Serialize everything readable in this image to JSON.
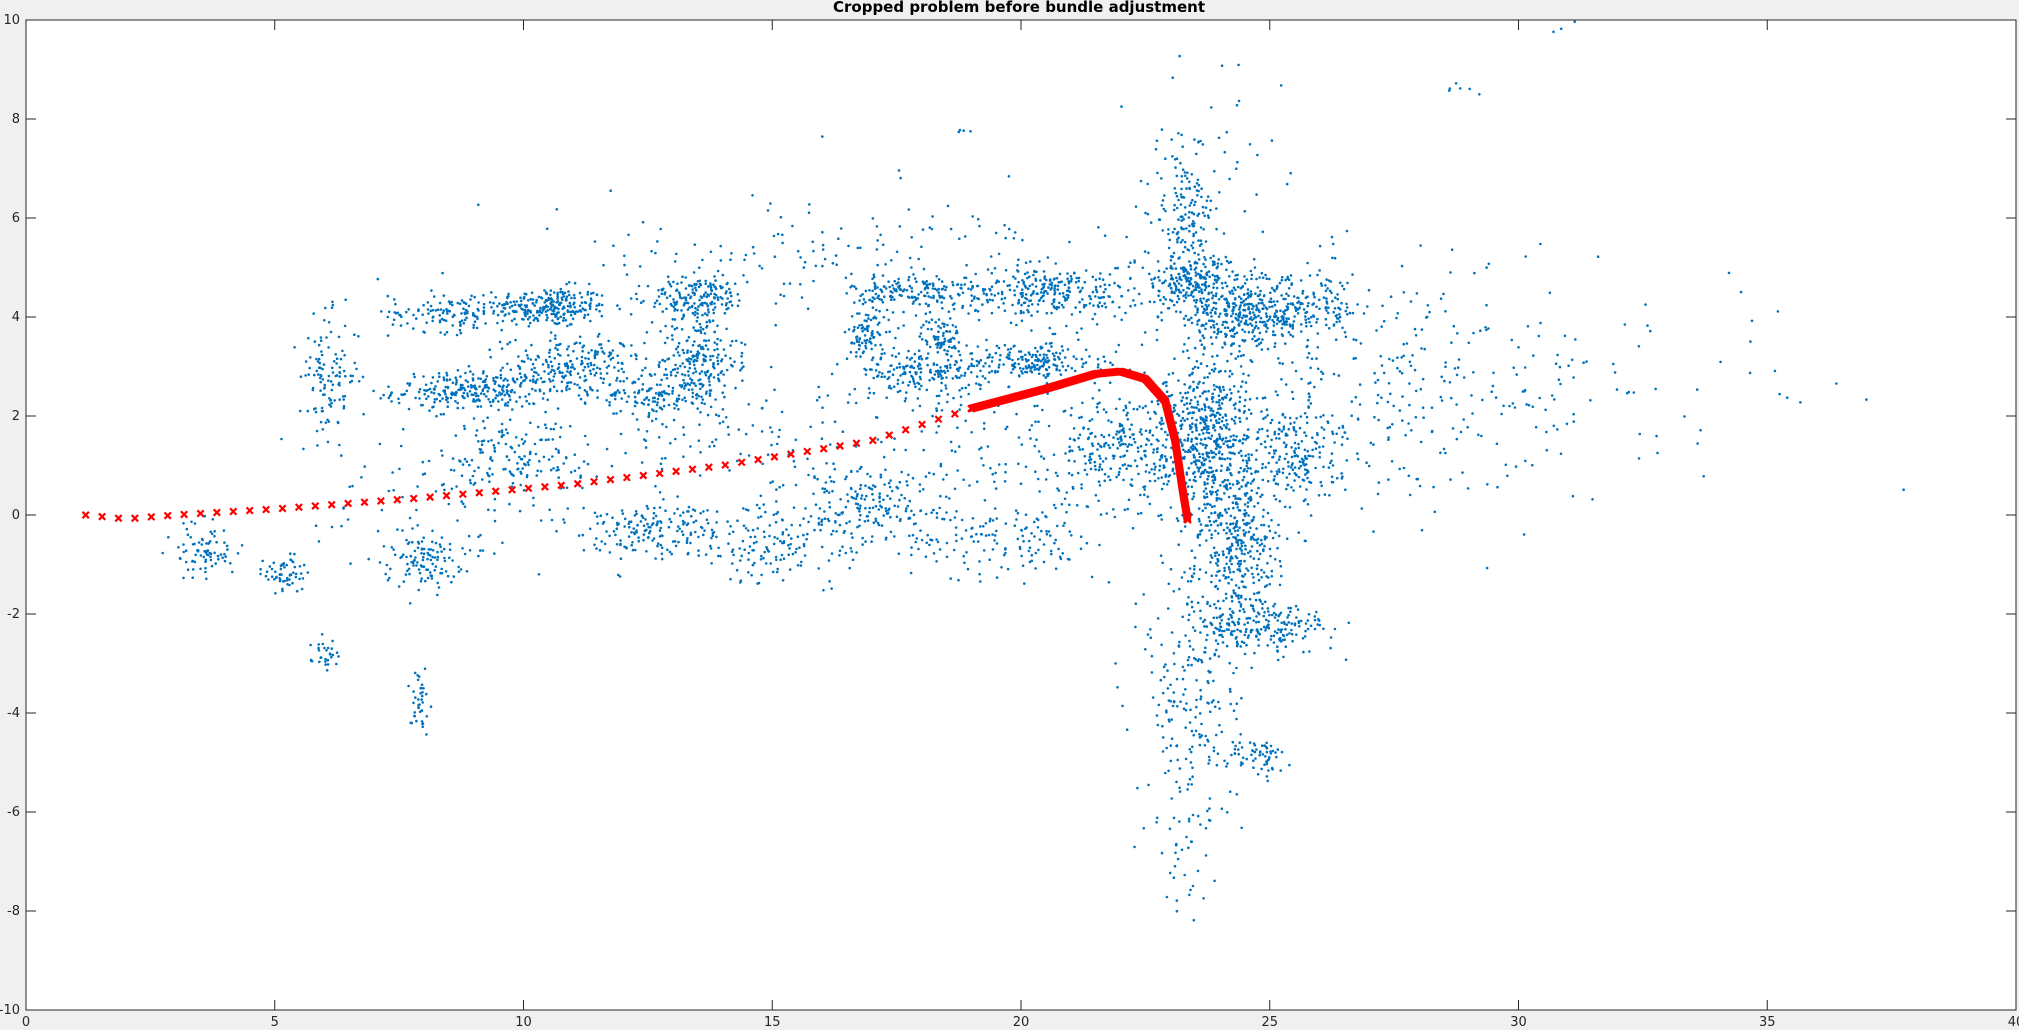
{
  "chart_data": {
    "type": "scatter",
    "title": "Cropped problem before bundle adjustment",
    "xlabel": "",
    "ylabel": "",
    "xlim": [
      0,
      40
    ],
    "ylim": [
      -10,
      10
    ],
    "xticks": [
      0,
      5,
      10,
      15,
      20,
      25,
      30,
      35,
      40
    ],
    "yticks": [
      -10,
      -8,
      -6,
      -4,
      -2,
      0,
      2,
      4,
      6,
      8,
      10
    ],
    "grid": false,
    "legend": "none",
    "colors": {
      "points": "#0072BD",
      "trajectory": "#FF0000",
      "axes_bg": "#FFFFFF",
      "figure_bg": "#F0F0F0"
    },
    "series": [
      {
        "kind": "point-cloud",
        "marker": "dot",
        "color": "#0072BD",
        "clusters": [
          {
            "cx": 10.5,
            "cy": 4.2,
            "sx": 0.6,
            "sy": 0.2,
            "n": 260
          },
          {
            "cx": 9.0,
            "cy": 2.5,
            "sx": 0.8,
            "sy": 0.2,
            "n": 260
          },
          {
            "cx": 11.0,
            "cy": 3.0,
            "sx": 0.7,
            "sy": 0.3,
            "n": 220
          },
          {
            "cx": 13.5,
            "cy": 3.1,
            "sx": 0.4,
            "sy": 0.6,
            "n": 250
          },
          {
            "cx": 13.5,
            "cy": 4.4,
            "sx": 0.5,
            "sy": 0.2,
            "n": 150
          },
          {
            "cx": 8.5,
            "cy": 4.1,
            "sx": 0.6,
            "sy": 0.2,
            "n": 120
          },
          {
            "cx": 6.1,
            "cy": 2.8,
            "sx": 0.3,
            "sy": 0.6,
            "n": 120
          },
          {
            "cx": 12.5,
            "cy": 2.4,
            "sx": 0.5,
            "sy": 0.2,
            "n": 100
          },
          {
            "cx": 16.9,
            "cy": 3.6,
            "sx": 0.2,
            "sy": 0.3,
            "n": 90
          },
          {
            "cx": 18.0,
            "cy": 2.9,
            "sx": 0.6,
            "sy": 0.2,
            "n": 150
          },
          {
            "cx": 18.4,
            "cy": 3.6,
            "sx": 0.2,
            "sy": 0.2,
            "n": 80
          },
          {
            "cx": 17.8,
            "cy": 4.5,
            "sx": 0.6,
            "sy": 0.2,
            "n": 150
          },
          {
            "cx": 20.5,
            "cy": 4.5,
            "sx": 0.9,
            "sy": 0.25,
            "n": 250
          },
          {
            "cx": 20.2,
            "cy": 3.1,
            "sx": 0.7,
            "sy": 0.2,
            "n": 180
          },
          {
            "cx": 23.5,
            "cy": 4.7,
            "sx": 0.6,
            "sy": 0.25,
            "n": 220
          },
          {
            "cx": 24.5,
            "cy": 4.0,
            "sx": 0.8,
            "sy": 0.3,
            "n": 320
          },
          {
            "cx": 25.5,
            "cy": 4.2,
            "sx": 0.7,
            "sy": 0.3,
            "n": 150
          },
          {
            "cx": 23.3,
            "cy": 6.0,
            "sx": 0.3,
            "sy": 0.6,
            "n": 150
          },
          {
            "cx": 23.8,
            "cy": 1.5,
            "sx": 0.4,
            "sy": 1.0,
            "n": 520
          },
          {
            "cx": 24.4,
            "cy": -0.8,
            "sx": 0.4,
            "sy": 0.8,
            "n": 320
          },
          {
            "cx": 24.9,
            "cy": -2.3,
            "sx": 0.7,
            "sy": 0.25,
            "n": 180
          },
          {
            "cx": 22.3,
            "cy": 1.4,
            "sx": 0.8,
            "sy": 0.5,
            "n": 280
          },
          {
            "cx": 25.4,
            "cy": 1.2,
            "sx": 0.5,
            "sy": 0.6,
            "n": 200
          },
          {
            "cx": 23.5,
            "cy": -3.5,
            "sx": 0.5,
            "sy": 1.6,
            "n": 220
          },
          {
            "cx": 24.8,
            "cy": -4.9,
            "sx": 0.3,
            "sy": 0.2,
            "n": 60
          },
          {
            "cx": 3.6,
            "cy": -0.7,
            "sx": 0.3,
            "sy": 0.3,
            "n": 80
          },
          {
            "cx": 5.2,
            "cy": -1.2,
            "sx": 0.2,
            "sy": 0.2,
            "n": 60
          },
          {
            "cx": 8.0,
            "cy": -0.9,
            "sx": 0.4,
            "sy": 0.25,
            "n": 110
          },
          {
            "cx": 7.9,
            "cy": -3.8,
            "sx": 0.1,
            "sy": 0.3,
            "n": 40
          },
          {
            "cx": 6.0,
            "cy": -2.7,
            "sx": 0.15,
            "sy": 0.2,
            "n": 30
          },
          {
            "cx": 12.5,
            "cy": -0.3,
            "sx": 0.8,
            "sy": 0.3,
            "n": 160
          },
          {
            "cx": 17.0,
            "cy": 0.2,
            "sx": 0.8,
            "sy": 0.4,
            "n": 160
          },
          {
            "cx": 15.0,
            "cy": -0.6,
            "sx": 1.0,
            "sy": 0.4,
            "n": 150
          },
          {
            "cx": 19.5,
            "cy": -0.5,
            "sx": 1.0,
            "sy": 0.4,
            "n": 140
          },
          {
            "cx": 10.0,
            "cy": 1.2,
            "sx": 0.8,
            "sy": 0.4,
            "n": 140
          },
          {
            "cx": 17.5,
            "cy": 5.0,
            "sx": 3.5,
            "sy": 0.7,
            "n": 220
          },
          {
            "cx": 15.0,
            "cy": 1.5,
            "sx": 2.5,
            "sy": 1.0,
            "n": 200
          },
          {
            "cx": 20.0,
            "cy": 1.5,
            "sx": 1.5,
            "sy": 1.0,
            "n": 160
          },
          {
            "cx": 26.5,
            "cy": 2.3,
            "sx": 1.8,
            "sy": 1.5,
            "n": 220
          },
          {
            "cx": 29.0,
            "cy": 2.8,
            "sx": 2.0,
            "sy": 1.2,
            "n": 140
          },
          {
            "cx": 24.0,
            "cy": 7.5,
            "sx": 0.7,
            "sy": 0.8,
            "n": 40
          },
          {
            "cx": 23.3,
            "cy": -6.5,
            "sx": 0.25,
            "sy": 1.0,
            "n": 40
          },
          {
            "cx": 8.0,
            "cy": 0.3,
            "sx": 1.5,
            "sy": 0.8,
            "n": 80
          },
          {
            "cx": 33.0,
            "cy": 3.0,
            "sx": 2.5,
            "sy": 0.8,
            "n": 35
          },
          {
            "cx": 28.8,
            "cy": 8.6,
            "sx": 0.2,
            "sy": 0.1,
            "n": 6
          },
          {
            "cx": 30.8,
            "cy": 9.8,
            "sx": 0.4,
            "sy": 0.15,
            "n": 5
          },
          {
            "cx": 18.8,
            "cy": 7.8,
            "sx": 0.1,
            "sy": 0.05,
            "n": 4
          }
        ]
      },
      {
        "kind": "camera-trajectory",
        "marker": "x",
        "color": "#FF0000",
        "path": [
          [
            1.2,
            0.0
          ],
          [
            2.0,
            -0.08
          ],
          [
            3.0,
            0.0
          ],
          [
            5.0,
            0.12
          ],
          [
            8.0,
            0.35
          ],
          [
            11.0,
            0.62
          ],
          [
            14.0,
            1.0
          ],
          [
            17.0,
            1.5
          ],
          [
            19.0,
            2.15
          ],
          [
            20.5,
            2.55
          ],
          [
            21.5,
            2.85
          ],
          [
            22.0,
            2.9
          ],
          [
            22.5,
            2.75
          ],
          [
            22.9,
            2.3
          ],
          [
            23.1,
            1.5
          ],
          [
            23.25,
            0.5
          ],
          [
            23.35,
            -0.1
          ]
        ],
        "sparse_until_x": 19.0,
        "sparse_count": 55,
        "dense_count": 380
      }
    ]
  }
}
